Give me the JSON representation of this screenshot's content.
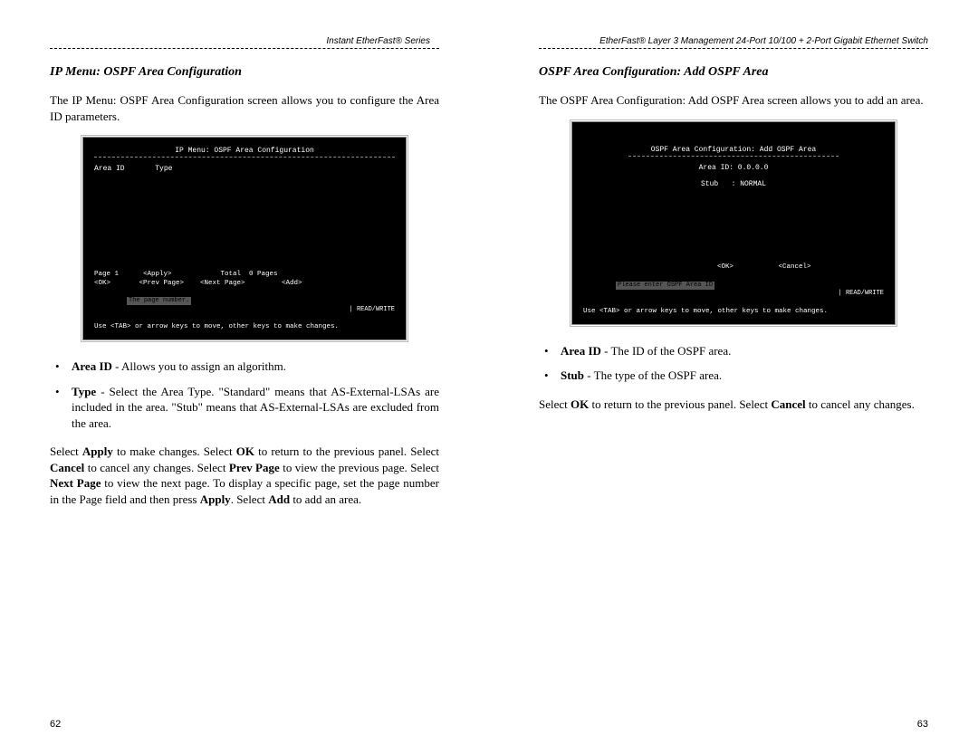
{
  "left": {
    "header": "Instant EtherFast® Series",
    "title": "IP Menu: OSPF Area Configuration",
    "intro": "The IP Menu: OSPF Area Configuration screen allows you to configure the Area ID parameters.",
    "terminal": {
      "title": "IP Menu: OSPF Area Configuration",
      "cols": "Area ID       Type",
      "bottom1": "Page 1      <Apply>            Total  0 Pages",
      "bottom2": "<OK>       <Prev Page>    <Next Page>         <Add>",
      "statusText": "The page number.",
      "statusRight": "| READ/WRITE",
      "hint": "Use <TAB> or arrow keys to move, other keys to make changes."
    },
    "bullets": [
      {
        "term": "Area ID",
        "desc": " - Allows you to assign an algorithm."
      },
      {
        "term": "Type",
        "desc": " - Select the Area Type. \"Standard\" means that AS-External-LSAs are included in the area. \"Stub\" means that AS-External-LSAs are excluded from the area."
      }
    ],
    "footerHtml": "Select <b>Apply</b> to make changes. Select <b>OK</b> to return to the previous panel. Select <b>Cancel</b> to cancel any changes. Select <b>Prev Page</b> to view the previous page. Select <b>Next Page</b> to view the next page. To display a specific page, set the page number in the Page field and then press <b>Apply</b>. Select <b>Add</b> to add an area.",
    "pageNo": "62"
  },
  "right": {
    "header": "EtherFast® Layer 3 Management 24-Port 10/100 + 2-Port Gigabit Ethernet Switch",
    "title": "OSPF Area Configuration: Add OSPF Area",
    "intro": "The OSPF Area Configuration: Add OSPF Area screen allows you to add an area.",
    "terminal": {
      "title": "OSPF Area Configuration: Add OSPF Area",
      "line1": "Area ID: 0.0.0.0",
      "line2": "Stub   : NORMAL",
      "bottom1": "               <OK>           <Cancel>",
      "statusText": "Please enter OSPF Area ID",
      "statusRight": "| READ/WRITE",
      "hint": "Use <TAB> or arrow keys to move, other keys to make changes."
    },
    "bullets": [
      {
        "term": "Area ID",
        "desc": " - The ID of the OSPF area."
      },
      {
        "term": "Stub",
        "desc": " - The type of the OSPF area."
      }
    ],
    "footerHtml": "Select <b>OK</b> to return to the previous panel. Select <b>Cancel</b> to cancel any changes.",
    "pageNo": "63"
  }
}
